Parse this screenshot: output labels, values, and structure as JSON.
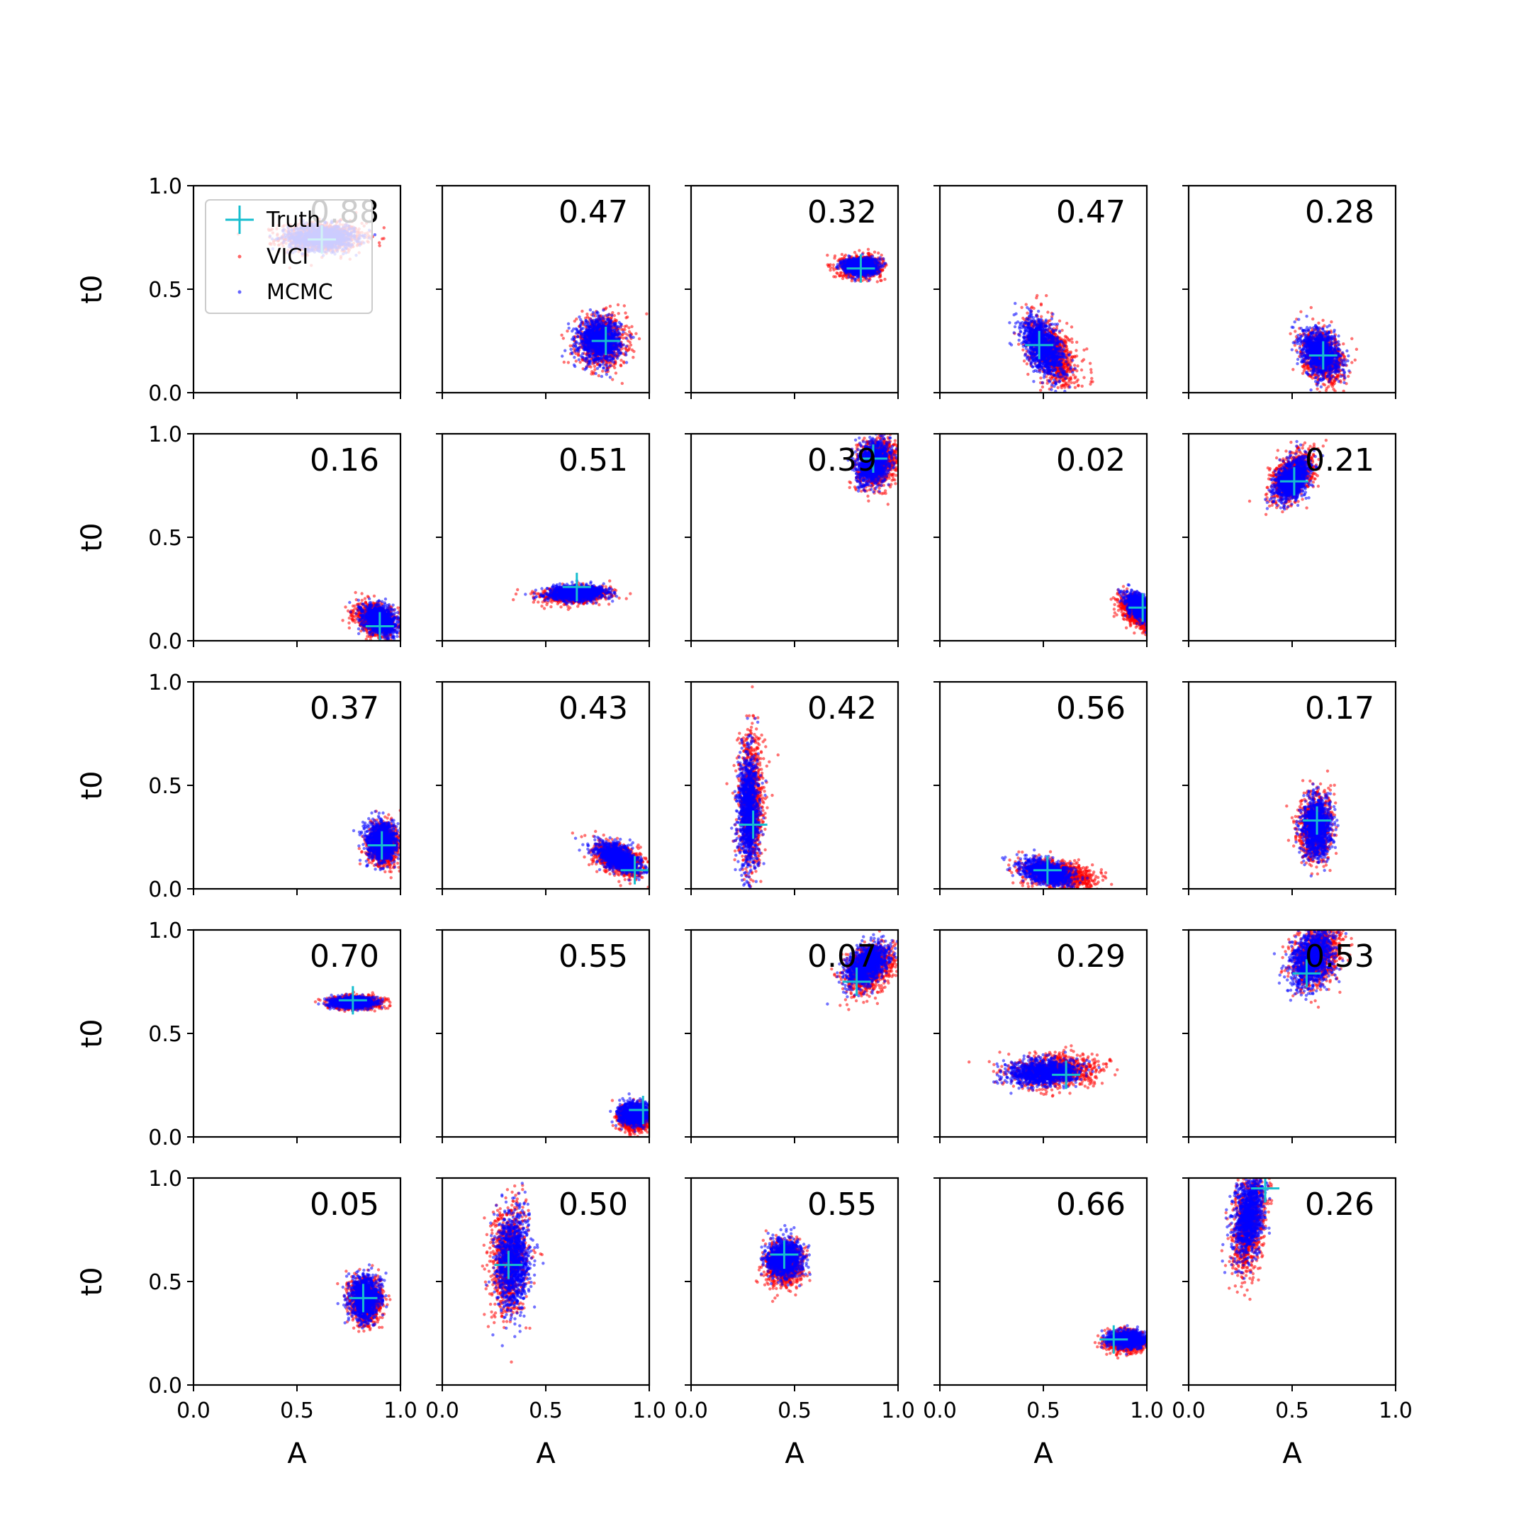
{
  "chart_data": {
    "type": "scatter",
    "layout": "5x5 grid of subplots",
    "xlabel": "A",
    "ylabel": "t0",
    "xlim": [
      0.0,
      1.0
    ],
    "ylim": [
      0.0,
      1.0
    ],
    "xticks": [
      "0.0",
      "0.5",
      "1.0"
    ],
    "yticks": [
      "0.0",
      "0.5",
      "1.0"
    ],
    "legend": {
      "placement": "top-left of first panel",
      "entries": [
        {
          "label": "Truth",
          "marker": "plus",
          "color": "#17becf"
        },
        {
          "label": "VICI",
          "marker": "dot",
          "color": "#ff0000"
        },
        {
          "label": "MCMC",
          "marker": "dot",
          "color": "#0000ff"
        }
      ]
    },
    "colors": {
      "vici": "#ff0000",
      "mcmc": "#0000ff",
      "truth": "#17becf"
    },
    "panels": [
      {
        "value": "0.88",
        "truth": [
          0.62,
          0.74
        ],
        "vici": {
          "cx": 0.62,
          "cy": 0.75,
          "sx": 0.1,
          "sy": 0.035,
          "rho": 0.0
        },
        "mcmc": {
          "cx": 0.62,
          "cy": 0.75,
          "sx": 0.08,
          "sy": 0.03,
          "rho": 0.0
        }
      },
      {
        "value": "0.47",
        "truth": [
          0.79,
          0.25
        ],
        "vici": {
          "cx": 0.77,
          "cy": 0.25,
          "sx": 0.06,
          "sy": 0.06,
          "rho": 0.0
        },
        "mcmc": {
          "cx": 0.76,
          "cy": 0.25,
          "sx": 0.05,
          "sy": 0.05,
          "rho": 0.0
        }
      },
      {
        "value": "0.32",
        "truth": [
          0.82,
          0.6
        ],
        "vici": {
          "cx": 0.82,
          "cy": 0.61,
          "sx": 0.05,
          "sy": 0.025,
          "rho": 0.0
        },
        "mcmc": {
          "cx": 0.82,
          "cy": 0.61,
          "sx": 0.04,
          "sy": 0.02,
          "rho": 0.0
        }
      },
      {
        "value": "0.47",
        "truth": [
          0.48,
          0.23
        ],
        "vici": {
          "cx": 0.54,
          "cy": 0.19,
          "sx": 0.06,
          "sy": 0.08,
          "rho": -0.5
        },
        "mcmc": {
          "cx": 0.5,
          "cy": 0.22,
          "sx": 0.05,
          "sy": 0.07,
          "rho": -0.5
        }
      },
      {
        "value": "0.28",
        "truth": [
          0.65,
          0.18
        ],
        "vici": {
          "cx": 0.65,
          "cy": 0.17,
          "sx": 0.05,
          "sy": 0.06,
          "rho": -0.3
        },
        "mcmc": {
          "cx": 0.64,
          "cy": 0.19,
          "sx": 0.045,
          "sy": 0.055,
          "rho": -0.3
        }
      },
      {
        "value": "0.16",
        "truth": [
          0.9,
          0.07
        ],
        "vici": {
          "cx": 0.88,
          "cy": 0.1,
          "sx": 0.05,
          "sy": 0.04,
          "rho": -0.3
        },
        "mcmc": {
          "cx": 0.9,
          "cy": 0.1,
          "sx": 0.04,
          "sy": 0.035,
          "rho": -0.3
        }
      },
      {
        "value": "0.51",
        "truth": [
          0.65,
          0.26
        ],
        "vici": {
          "cx": 0.64,
          "cy": 0.22,
          "sx": 0.08,
          "sy": 0.02,
          "rho": 0.2
        },
        "mcmc": {
          "cx": 0.65,
          "cy": 0.23,
          "sx": 0.07,
          "sy": 0.018,
          "rho": 0.2
        }
      },
      {
        "value": "0.39",
        "truth": [
          0.88,
          0.88
        ],
        "vici": {
          "cx": 0.9,
          "cy": 0.86,
          "sx": 0.05,
          "sy": 0.06,
          "rho": 0.2
        },
        "mcmc": {
          "cx": 0.88,
          "cy": 0.86,
          "sx": 0.04,
          "sy": 0.05,
          "rho": 0.2
        }
      },
      {
        "value": "0.02",
        "truth": [
          0.98,
          0.16
        ],
        "vici": {
          "cx": 0.95,
          "cy": 0.14,
          "sx": 0.04,
          "sy": 0.04,
          "rho": -0.5
        },
        "mcmc": {
          "cx": 0.97,
          "cy": 0.16,
          "sx": 0.035,
          "sy": 0.035,
          "rho": -0.5
        }
      },
      {
        "value": "0.21",
        "truth": [
          0.51,
          0.77
        ],
        "vici": {
          "cx": 0.5,
          "cy": 0.79,
          "sx": 0.05,
          "sy": 0.06,
          "rho": 0.4
        },
        "mcmc": {
          "cx": 0.5,
          "cy": 0.78,
          "sx": 0.04,
          "sy": 0.05,
          "rho": 0.4
        }
      },
      {
        "value": "0.37",
        "truth": [
          0.91,
          0.21
        ],
        "vici": {
          "cx": 0.92,
          "cy": 0.21,
          "sx": 0.04,
          "sy": 0.05,
          "rho": 0.0
        },
        "mcmc": {
          "cx": 0.91,
          "cy": 0.23,
          "sx": 0.035,
          "sy": 0.045,
          "rho": 0.0
        }
      },
      {
        "value": "0.43",
        "truth": [
          0.93,
          0.09
        ],
        "vici": {
          "cx": 0.85,
          "cy": 0.14,
          "sx": 0.06,
          "sy": 0.04,
          "rho": -0.5
        },
        "mcmc": {
          "cx": 0.85,
          "cy": 0.15,
          "sx": 0.05,
          "sy": 0.035,
          "rho": -0.5
        }
      },
      {
        "value": "0.42",
        "truth": [
          0.3,
          0.31
        ],
        "vici": {
          "cx": 0.29,
          "cy": 0.4,
          "sx": 0.03,
          "sy": 0.16,
          "rho": 0.0
        },
        "mcmc": {
          "cx": 0.28,
          "cy": 0.38,
          "sx": 0.025,
          "sy": 0.14,
          "rho": 0.0
        }
      },
      {
        "value": "0.56",
        "truth": [
          0.52,
          0.09
        ],
        "vici": {
          "cx": 0.58,
          "cy": 0.07,
          "sx": 0.09,
          "sy": 0.035,
          "rho": -0.4
        },
        "mcmc": {
          "cx": 0.52,
          "cy": 0.08,
          "sx": 0.06,
          "sy": 0.03,
          "rho": -0.4
        }
      },
      {
        "value": "0.17",
        "truth": [
          0.62,
          0.33
        ],
        "vici": {
          "cx": 0.61,
          "cy": 0.29,
          "sx": 0.04,
          "sy": 0.08,
          "rho": 0.0
        },
        "mcmc": {
          "cx": 0.62,
          "cy": 0.3,
          "sx": 0.035,
          "sy": 0.07,
          "rho": 0.0
        }
      },
      {
        "value": "0.70",
        "truth": [
          0.77,
          0.66
        ],
        "vici": {
          "cx": 0.78,
          "cy": 0.65,
          "sx": 0.06,
          "sy": 0.015,
          "rho": 0.0
        },
        "mcmc": {
          "cx": 0.77,
          "cy": 0.65,
          "sx": 0.05,
          "sy": 0.013,
          "rho": 0.0
        }
      },
      {
        "value": "0.55",
        "truth": [
          0.97,
          0.13
        ],
        "vici": {
          "cx": 0.93,
          "cy": 0.09,
          "sx": 0.04,
          "sy": 0.03,
          "rho": 0.0
        },
        "mcmc": {
          "cx": 0.93,
          "cy": 0.11,
          "sx": 0.035,
          "sy": 0.025,
          "rho": 0.0
        }
      },
      {
        "value": "0.07",
        "truth": [
          0.8,
          0.75
        ],
        "vici": {
          "cx": 0.86,
          "cy": 0.81,
          "sx": 0.06,
          "sy": 0.06,
          "rho": 0.4
        },
        "mcmc": {
          "cx": 0.85,
          "cy": 0.83,
          "sx": 0.05,
          "sy": 0.05,
          "rho": 0.4
        }
      },
      {
        "value": "0.29",
        "truth": [
          0.61,
          0.3
        ],
        "vici": {
          "cx": 0.56,
          "cy": 0.32,
          "sx": 0.11,
          "sy": 0.04,
          "rho": 0.1
        },
        "mcmc": {
          "cx": 0.5,
          "cy": 0.31,
          "sx": 0.08,
          "sy": 0.03,
          "rho": 0.1
        }
      },
      {
        "value": "0.53",
        "truth": [
          0.57,
          0.79
        ],
        "vici": {
          "cx": 0.62,
          "cy": 0.88,
          "sx": 0.06,
          "sy": 0.08,
          "rho": 0.3
        },
        "mcmc": {
          "cx": 0.6,
          "cy": 0.86,
          "sx": 0.05,
          "sy": 0.07,
          "rho": 0.3
        }
      },
      {
        "value": "0.05",
        "truth": [
          0.82,
          0.42
        ],
        "vici": {
          "cx": 0.83,
          "cy": 0.41,
          "sx": 0.04,
          "sy": 0.055,
          "rho": 0.0
        },
        "mcmc": {
          "cx": 0.83,
          "cy": 0.42,
          "sx": 0.035,
          "sy": 0.05,
          "rho": 0.0
        }
      },
      {
        "value": "0.50",
        "truth": [
          0.32,
          0.58
        ],
        "vici": {
          "cx": 0.32,
          "cy": 0.6,
          "sx": 0.045,
          "sy": 0.13,
          "rho": 0.1
        },
        "mcmc": {
          "cx": 0.34,
          "cy": 0.6,
          "sx": 0.04,
          "sy": 0.12,
          "rho": 0.1
        }
      },
      {
        "value": "0.55",
        "truth": [
          0.45,
          0.63
        ],
        "vici": {
          "cx": 0.45,
          "cy": 0.58,
          "sx": 0.045,
          "sy": 0.05,
          "rho": 0.0
        },
        "mcmc": {
          "cx": 0.45,
          "cy": 0.61,
          "sx": 0.04,
          "sy": 0.045,
          "rho": 0.0
        }
      },
      {
        "value": "0.66",
        "truth": [
          0.84,
          0.22
        ],
        "vici": {
          "cx": 0.9,
          "cy": 0.21,
          "sx": 0.05,
          "sy": 0.025,
          "rho": 0.0
        },
        "mcmc": {
          "cx": 0.91,
          "cy": 0.22,
          "sx": 0.045,
          "sy": 0.02,
          "rho": 0.0
        }
      },
      {
        "value": "0.26",
        "truth": [
          0.37,
          0.95
        ],
        "vici": {
          "cx": 0.29,
          "cy": 0.78,
          "sx": 0.04,
          "sy": 0.12,
          "rho": 0.3
        },
        "mcmc": {
          "cx": 0.29,
          "cy": 0.82,
          "sx": 0.035,
          "sy": 0.1,
          "rho": 0.3
        }
      }
    ]
  }
}
